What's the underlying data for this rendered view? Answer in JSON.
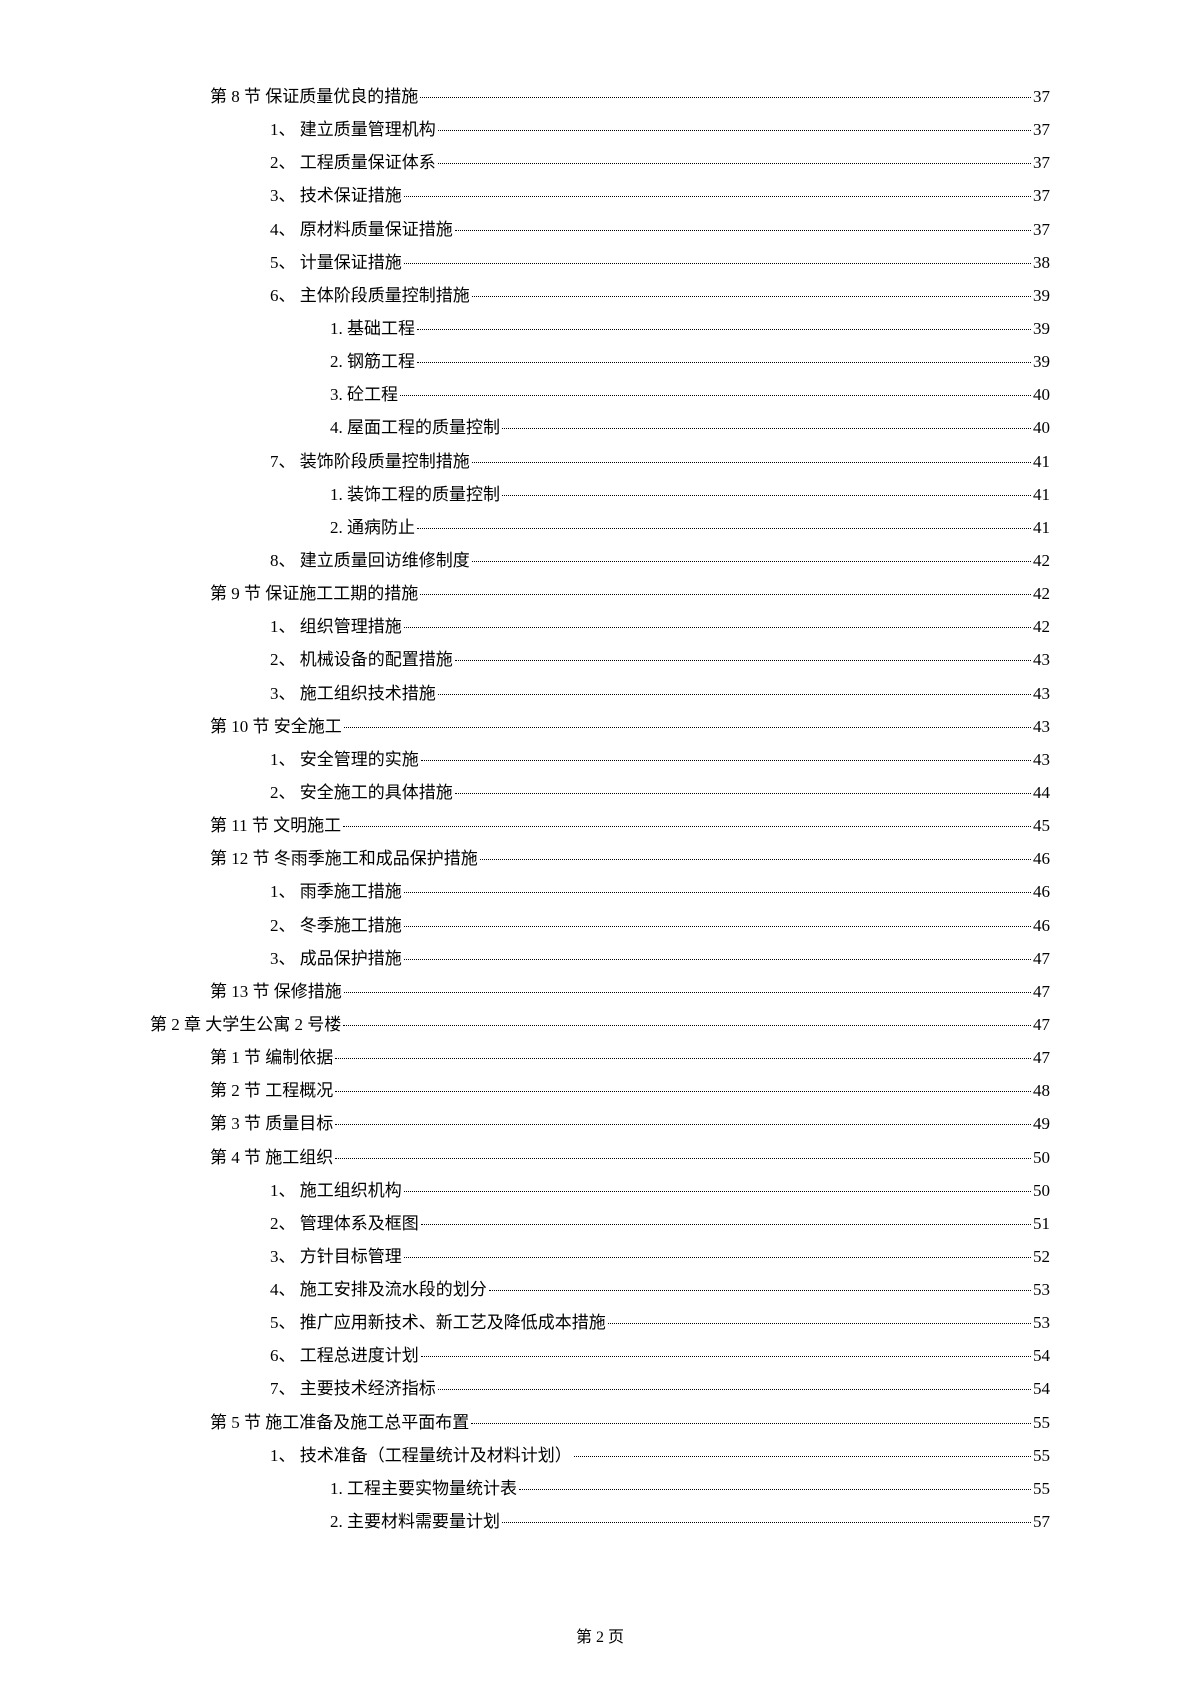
{
  "entries": [
    {
      "indent": 1,
      "label": "第 8 节 保证质量优良的措施",
      "page": "37"
    },
    {
      "indent": 2,
      "label": "1、 建立质量管理机构",
      "page": "37"
    },
    {
      "indent": 2,
      "label": "2、 工程质量保证体系",
      "page": "37"
    },
    {
      "indent": 2,
      "label": "3、 技术保证措施",
      "page": "37"
    },
    {
      "indent": 2,
      "label": "4、 原材料质量保证措施",
      "page": "37"
    },
    {
      "indent": 2,
      "label": "5、 计量保证措施",
      "page": "38"
    },
    {
      "indent": 2,
      "label": "6、 主体阶段质量控制措施",
      "page": "39"
    },
    {
      "indent": 3,
      "label": "1. 基础工程",
      "page": "39"
    },
    {
      "indent": 3,
      "label": "2. 钢筋工程",
      "page": "39"
    },
    {
      "indent": 3,
      "label": "3. 砼工程",
      "page": "40"
    },
    {
      "indent": 3,
      "label": "4. 屋面工程的质量控制",
      "page": "40"
    },
    {
      "indent": 2,
      "label": "7、 装饰阶段质量控制措施",
      "page": "41"
    },
    {
      "indent": 3,
      "label": "1. 装饰工程的质量控制",
      "page": "41"
    },
    {
      "indent": 3,
      "label": "2. 通病防止",
      "page": "41"
    },
    {
      "indent": 2,
      "label": "8、 建立质量回访维修制度",
      "page": "42"
    },
    {
      "indent": 1,
      "label": "第 9 节 保证施工工期的措施",
      "page": "42"
    },
    {
      "indent": 2,
      "label": "1、 组织管理措施",
      "page": "42"
    },
    {
      "indent": 2,
      "label": "2、 机械设备的配置措施",
      "page": "43"
    },
    {
      "indent": 2,
      "label": "3、 施工组织技术措施",
      "page": "43"
    },
    {
      "indent": 1,
      "label": "第 10 节 安全施工",
      "page": "43"
    },
    {
      "indent": 2,
      "label": "1、 安全管理的实施",
      "page": "43"
    },
    {
      "indent": 2,
      "label": "2、 安全施工的具体措施",
      "page": "44"
    },
    {
      "indent": 1,
      "label": "第 11 节 文明施工",
      "page": "45"
    },
    {
      "indent": 1,
      "label": "第 12 节 冬雨季施工和成品保护措施",
      "page": "46"
    },
    {
      "indent": 2,
      "label": "1、 雨季施工措施",
      "page": "46"
    },
    {
      "indent": 2,
      "label": "2、 冬季施工措施",
      "page": "46"
    },
    {
      "indent": 2,
      "label": "3、 成品保护措施",
      "page": "47"
    },
    {
      "indent": 1,
      "label": "第 13 节 保修措施",
      "page": "47"
    },
    {
      "indent": 0,
      "label": "第 2 章 大学生公寓 2 号楼",
      "page": "47"
    },
    {
      "indent": 1,
      "label": "第 1 节 编制依据",
      "page": "47"
    },
    {
      "indent": 1,
      "label": "第 2 节 工程概况",
      "page": "48"
    },
    {
      "indent": 1,
      "label": "第 3 节 质量目标",
      "page": "49"
    },
    {
      "indent": 1,
      "label": "第 4 节 施工组织",
      "page": "50"
    },
    {
      "indent": 2,
      "label": "1、 施工组织机构",
      "page": "50"
    },
    {
      "indent": 2,
      "label": "2、 管理体系及框图",
      "page": "51"
    },
    {
      "indent": 2,
      "label": "3、 方针目标管理",
      "page": "52"
    },
    {
      "indent": 2,
      "label": "4、 施工安排及流水段的划分",
      "page": "53"
    },
    {
      "indent": 2,
      "label": "5、 推广应用新技术、新工艺及降低成本措施",
      "page": "53"
    },
    {
      "indent": 2,
      "label": "6、 工程总进度计划",
      "page": "54"
    },
    {
      "indent": 2,
      "label": "7、 主要技术经济指标",
      "page": "54"
    },
    {
      "indent": 1,
      "label": "第 5 节 施工准备及施工总平面布置",
      "page": "55"
    },
    {
      "indent": 2,
      "label": "1、 技术准备（工程量统计及材料计划）",
      "page": "55"
    },
    {
      "indent": 3,
      "label": "1. 工程主要实物量统计表",
      "page": "55"
    },
    {
      "indent": 3,
      "label": "2. 主要材料需要量计划",
      "page": "57"
    }
  ],
  "footer": "第 2 页"
}
